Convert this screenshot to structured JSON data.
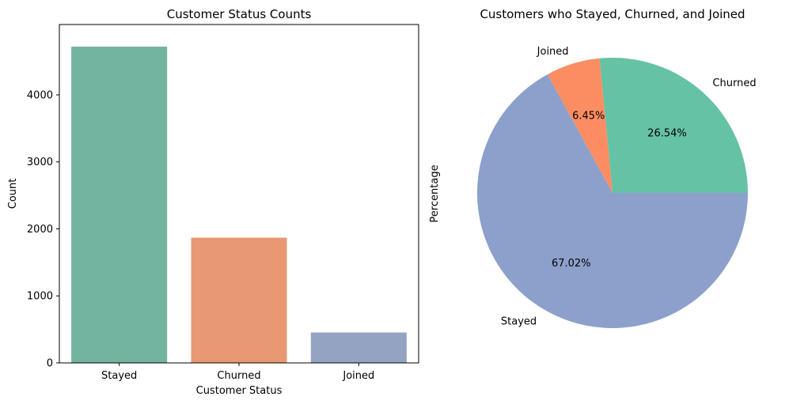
{
  "chart_data": [
    {
      "type": "bar",
      "title": "Customer Status Counts",
      "xlabel": "Customer Status",
      "ylabel": "Count",
      "categories": [
        "Stayed",
        "Churned",
        "Joined"
      ],
      "values": [
        4720,
        1869,
        454
      ],
      "colors": [
        "#73b4a0",
        "#e99874",
        "#95a3c3"
      ],
      "ylim": [
        0,
        5050
      ],
      "yticks": [
        0,
        1000,
        2000,
        3000,
        4000
      ],
      "grid": false
    },
    {
      "type": "pie",
      "title": "Customers who Stayed, Churned, and Joined",
      "ylabel": "Percentage",
      "labels": [
        "Churned",
        "Joined",
        "Stayed"
      ],
      "values": [
        26.54,
        6.45,
        67.02
      ],
      "pct_labels": [
        "26.54%",
        "6.45%",
        "67.02%"
      ],
      "colors": [
        "#66c2a5",
        "#fc8d62",
        "#8da0cb"
      ],
      "startangle": 0
    }
  ]
}
